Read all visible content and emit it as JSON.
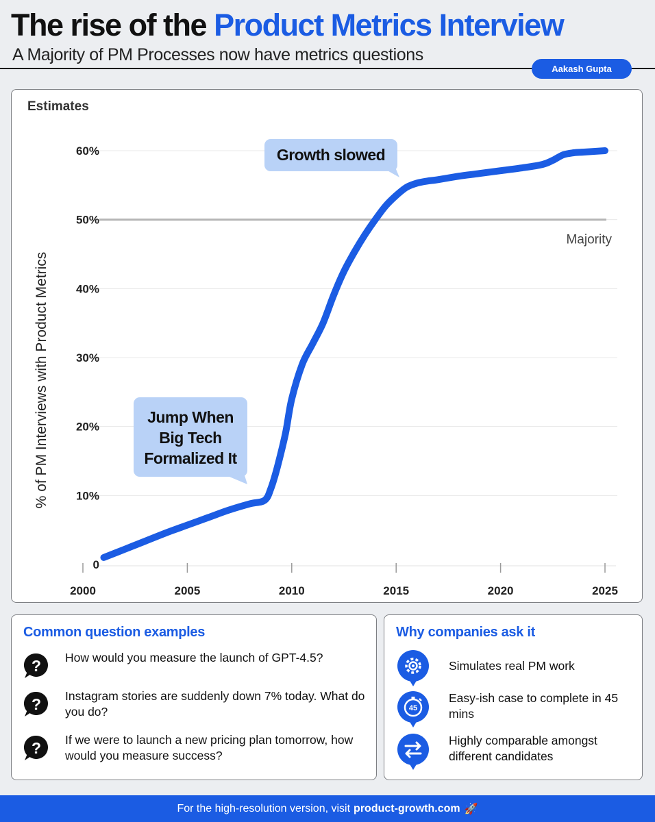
{
  "header": {
    "title_prefix": "The rise of the ",
    "title_highlight": "Product Metrics Interview",
    "subtitle": "A Majority of PM Processes now have metrics questions",
    "author": "Aakash Gupta"
  },
  "colors": {
    "accent": "#1b5ce3",
    "callout": "#b9d2f7",
    "reference_line": "#b5b5b5"
  },
  "chart_data": {
    "type": "line",
    "corner_label": "Estimates",
    "ylabel": "% of PM Interviews with Product Metrics",
    "xlabel": "",
    "x_ticks": [
      2000,
      2005,
      2010,
      2015,
      2020,
      2025
    ],
    "y_ticks": [
      0,
      10,
      20,
      30,
      40,
      50,
      60
    ],
    "y_tick_labels": [
      "0",
      "10%",
      "20%",
      "30%",
      "40%",
      "50%",
      "60%"
    ],
    "xlim": [
      2000,
      2025
    ],
    "ylim": [
      0,
      60
    ],
    "series": [
      {
        "name": "% of PM interviews with product metrics",
        "x": [
          2001,
          2002,
          2003,
          2004,
          2005,
          2006,
          2007,
          2008,
          2008.7,
          2009,
          2009.3,
          2009.7,
          2010,
          2010.5,
          2011,
          2011.5,
          2012,
          2012.5,
          2013,
          2013.5,
          2014,
          2014.5,
          2015,
          2015.5,
          2016,
          2016.5,
          2017,
          2018,
          2019,
          2020,
          2021,
          2022,
          2022.5,
          2023,
          2023.5,
          2024,
          2025
        ],
        "y": [
          1,
          2.2,
          3.4,
          4.6,
          5.7,
          6.8,
          7.9,
          8.8,
          9.3,
          11,
          14,
          19,
          24,
          29,
          32,
          35,
          39,
          42.5,
          45.3,
          47.8,
          50,
          52,
          53.5,
          54.7,
          55.3,
          55.6,
          55.8,
          56.3,
          56.7,
          57.1,
          57.5,
          58,
          58.6,
          59.4,
          59.7,
          59.8,
          60
        ]
      }
    ],
    "reference_lines": [
      {
        "y": 50,
        "label": "Majority"
      }
    ],
    "annotations": [
      {
        "text_lines": [
          "Jump When",
          "Big Tech",
          "Formalized It"
        ]
      },
      {
        "text_lines": [
          "Growth slowed"
        ]
      }
    ]
  },
  "questions": {
    "title": "Common question examples",
    "items": [
      {
        "icon": "question-icon",
        "text": "How would you measure the launch of GPT-4.5?"
      },
      {
        "icon": "question-icon",
        "text": "Instagram stories are suddenly down 7% today. What do you do?"
      },
      {
        "icon": "question-icon",
        "text": "If we were to launch a new pricing plan tomorrow, how would you measure success?"
      }
    ]
  },
  "why": {
    "title": "Why companies ask it",
    "items": [
      {
        "icon": "gear-icon",
        "text": "Simulates real PM work"
      },
      {
        "icon": "timer-45-icon",
        "badge": "45",
        "text": "Easy-ish case to complete in 45 mins"
      },
      {
        "icon": "swap-arrows-icon",
        "text": "Highly comparable amongst different candidates"
      }
    ]
  },
  "footer": {
    "prefix": "For the high-resolution version, visit",
    "link": "product-growth.com",
    "rocket": "🚀"
  }
}
